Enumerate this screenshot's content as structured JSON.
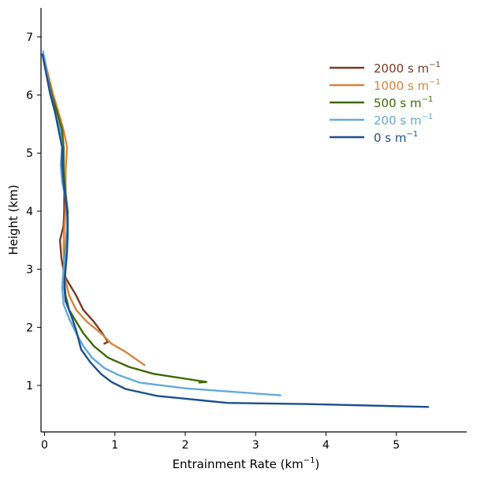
{
  "chart_data": {
    "type": "line",
    "title": "",
    "xlabel": "Entrainment Rate (km",
    "xlabel_sup": "−1",
    "xlabel_end": ")",
    "ylabel": "Height (km)",
    "xlim": [
      -0.05,
      6.0
    ],
    "ylim": [
      0.2,
      7.5
    ],
    "xticks": [
      0,
      1,
      2,
      3,
      4,
      5
    ],
    "xtick_labels": [
      "0",
      "1",
      "2",
      "3",
      "4",
      "5"
    ],
    "yticks": [
      1,
      2,
      3,
      4,
      5,
      6,
      7
    ],
    "ytick_labels": [
      "1",
      "2",
      "3",
      "4",
      "5",
      "6",
      "7"
    ],
    "legend_position": "upper-right",
    "series": [
      {
        "name": "2000 s m",
        "sup": "−1",
        "color": "#7b3a1f",
        "points": [
          [
            0.0,
            6.62
          ],
          [
            0.1,
            6.05
          ],
          [
            0.15,
            5.7
          ],
          [
            0.22,
            5.4
          ],
          [
            0.27,
            5.1
          ],
          [
            0.27,
            4.7
          ],
          [
            0.28,
            4.3
          ],
          [
            0.28,
            4.0
          ],
          [
            0.27,
            3.75
          ],
          [
            0.22,
            3.5
          ],
          [
            0.24,
            3.2
          ],
          [
            0.28,
            2.9
          ],
          [
            0.35,
            2.75
          ],
          [
            0.45,
            2.55
          ],
          [
            0.55,
            2.3
          ],
          [
            0.7,
            2.1
          ],
          [
            0.82,
            1.9
          ],
          [
            0.9,
            1.75
          ],
          [
            0.85,
            1.72
          ]
        ]
      },
      {
        "name": "1000 s m",
        "sup": "−1",
        "color": "#d9843a",
        "points": [
          [
            0.0,
            6.6
          ],
          [
            0.12,
            6.02
          ],
          [
            0.2,
            5.7
          ],
          [
            0.27,
            5.4
          ],
          [
            0.32,
            5.1
          ],
          [
            0.3,
            4.7
          ],
          [
            0.3,
            4.3
          ],
          [
            0.3,
            4.0
          ],
          [
            0.28,
            3.7
          ],
          [
            0.27,
            3.4
          ],
          [
            0.28,
            3.1
          ],
          [
            0.3,
            2.8
          ],
          [
            0.35,
            2.55
          ],
          [
            0.45,
            2.3
          ],
          [
            0.6,
            2.1
          ],
          [
            0.8,
            1.9
          ],
          [
            0.95,
            1.72
          ],
          [
            1.15,
            1.58
          ],
          [
            1.42,
            1.35
          ]
        ]
      },
      {
        "name": "500 s m",
        "sup": "−1",
        "color": "#3f6a00",
        "points": [
          [
            0.0,
            6.55
          ],
          [
            0.1,
            6.02
          ],
          [
            0.18,
            5.7
          ],
          [
            0.25,
            5.4
          ],
          [
            0.27,
            5.1
          ],
          [
            0.27,
            4.7
          ],
          [
            0.3,
            4.3
          ],
          [
            0.33,
            4.0
          ],
          [
            0.32,
            3.7
          ],
          [
            0.3,
            3.4
          ],
          [
            0.28,
            3.1
          ],
          [
            0.28,
            2.8
          ],
          [
            0.3,
            2.55
          ],
          [
            0.35,
            2.3
          ],
          [
            0.45,
            2.1
          ],
          [
            0.55,
            1.9
          ],
          [
            0.7,
            1.68
          ],
          [
            0.9,
            1.48
          ],
          [
            1.2,
            1.32
          ],
          [
            1.55,
            1.2
          ],
          [
            2.3,
            1.06
          ],
          [
            2.2,
            1.05
          ]
        ]
      },
      {
        "name": "200 s m",
        "sup": "−1",
        "color": "#64a9dc",
        "points": [
          [
            -0.02,
            6.75
          ],
          [
            0.08,
            6.05
          ],
          [
            0.15,
            5.7
          ],
          [
            0.22,
            5.4
          ],
          [
            0.25,
            5.1
          ],
          [
            0.23,
            4.8
          ],
          [
            0.25,
            4.5
          ],
          [
            0.3,
            4.2
          ],
          [
            0.32,
            3.9
          ],
          [
            0.32,
            3.6
          ],
          [
            0.3,
            3.3
          ],
          [
            0.27,
            3.0
          ],
          [
            0.25,
            2.7
          ],
          [
            0.27,
            2.4
          ],
          [
            0.35,
            2.15
          ],
          [
            0.45,
            1.9
          ],
          [
            0.55,
            1.68
          ],
          [
            0.68,
            1.47
          ],
          [
            0.85,
            1.3
          ],
          [
            1.05,
            1.18
          ],
          [
            1.35,
            1.05
          ],
          [
            2.0,
            0.95
          ],
          [
            3.35,
            0.83
          ]
        ]
      },
      {
        "name": "0 s m",
        "sup": "−1",
        "color": "#1f4e8f",
        "points": [
          [
            -0.03,
            6.7
          ],
          [
            0.08,
            6.02
          ],
          [
            0.15,
            5.7
          ],
          [
            0.2,
            5.4
          ],
          [
            0.25,
            5.1
          ],
          [
            0.25,
            4.8
          ],
          [
            0.27,
            4.5
          ],
          [
            0.3,
            4.2
          ],
          [
            0.33,
            3.9
          ],
          [
            0.33,
            3.6
          ],
          [
            0.32,
            3.3
          ],
          [
            0.3,
            3.0
          ],
          [
            0.28,
            2.7
          ],
          [
            0.3,
            2.45
          ],
          [
            0.38,
            2.2
          ],
          [
            0.45,
            1.95
          ],
          [
            0.52,
            1.62
          ],
          [
            0.65,
            1.4
          ],
          [
            0.8,
            1.2
          ],
          [
            0.95,
            1.06
          ],
          [
            1.15,
            0.94
          ],
          [
            1.6,
            0.82
          ],
          [
            2.6,
            0.7
          ],
          [
            3.7,
            0.68
          ],
          [
            5.45,
            0.63
          ]
        ]
      }
    ]
  }
}
